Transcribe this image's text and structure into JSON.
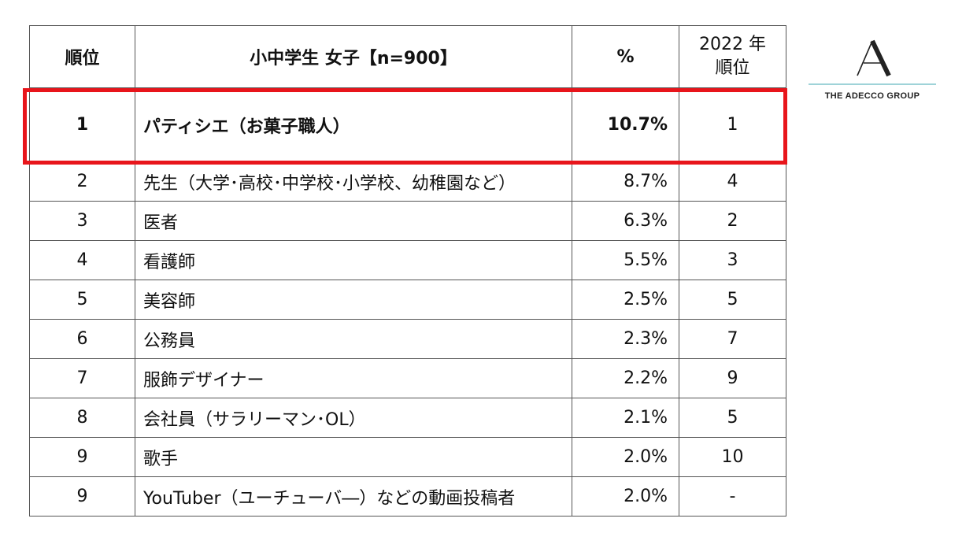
{
  "table": {
    "headers": {
      "rank": "順位",
      "job": "小中学生 女子【n=900】",
      "percent": "%",
      "prev_year_line1": "2022 年",
      "prev_year_line2": "順位"
    },
    "rows": [
      {
        "rank": "1",
        "job": "パティシエ（お菓子職人）",
        "percent": "10.7%",
        "prev": "1"
      },
      {
        "rank": "2",
        "job": "先生（大学･高校･中学校･小学校、幼稚園など）",
        "percent": "8.7%",
        "prev": "4"
      },
      {
        "rank": "3",
        "job": "医者",
        "percent": "6.3%",
        "prev": "2"
      },
      {
        "rank": "4",
        "job": "看護師",
        "percent": "5.5%",
        "prev": "3"
      },
      {
        "rank": "5",
        "job": "美容師",
        "percent": "2.5%",
        "prev": "5"
      },
      {
        "rank": "6",
        "job": "公務員",
        "percent": "2.3%",
        "prev": "7"
      },
      {
        "rank": "7",
        "job": "服飾デザイナー",
        "percent": "2.2%",
        "prev": "9"
      },
      {
        "rank": "8",
        "job": "会社員（サラリーマン･OL）",
        "percent": "2.1%",
        "prev": "5"
      },
      {
        "rank": "9",
        "job": "歌手",
        "percent": "2.0%",
        "prev": "10"
      },
      {
        "rank": "9",
        "job": "YouTuber（ユーチューバ―）などの動画投稿者",
        "percent": "2.0%",
        "prev": "-"
      }
    ]
  },
  "logo": {
    "text": "THE ADECCO GROUP",
    "icon": "adecco-a-logo-icon"
  },
  "colors": {
    "highlight": "#e8151b",
    "logo_line": "#9fd3d8",
    "border": "#555555"
  }
}
